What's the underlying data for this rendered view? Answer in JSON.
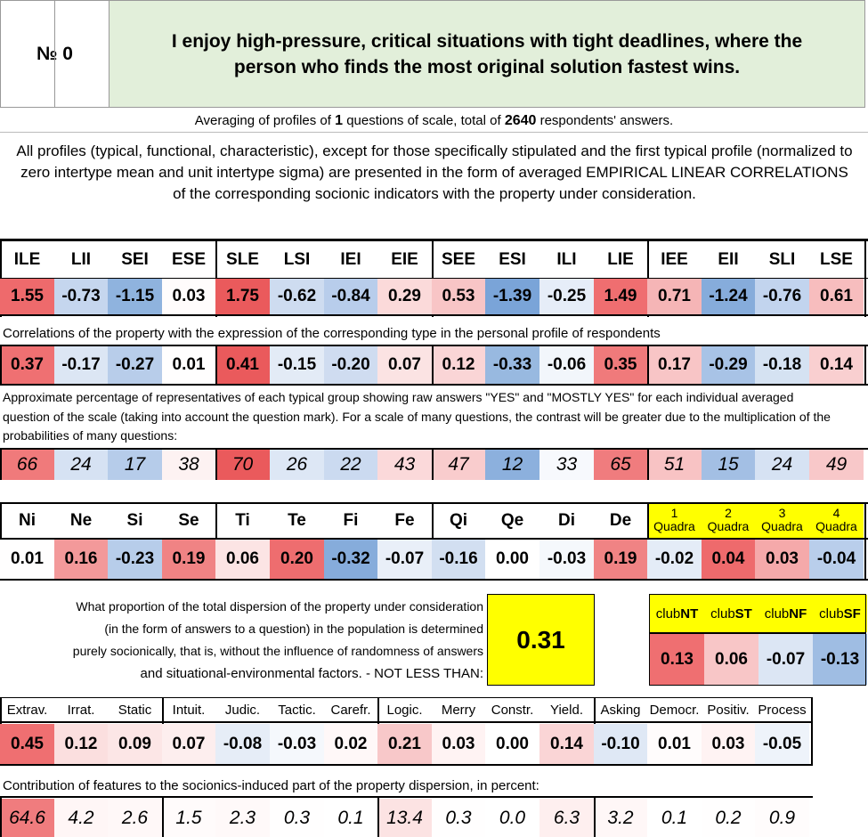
{
  "header": {
    "number_label": "№ 0",
    "question": "I enjoy high-pressure, critical situations with tight deadlines, where the person who finds the most original solution fastest wins."
  },
  "averaging": {
    "prefix": "Averaging of profiles of",
    "count": "1",
    "middle": "questions of scale, total of",
    "respondents": "2640",
    "suffix": "respondents' answers."
  },
  "intro": "All profiles (typical, functional, characteristic), except for those specifically stipulated and the first typical profile (normalized to zero intertype mean and unit intertype sigma) are presented in the form of averaged EMPIRICAL LINEAR CORRELATIONS of the corresponding socionic indicators with the property under consideration.",
  "types": {
    "labels": [
      "ILE",
      "LII",
      "SEI",
      "ESE",
      "SLE",
      "LSI",
      "IEI",
      "EIE",
      "SEE",
      "ESI",
      "ILI",
      "LIE",
      "IEE",
      "EII",
      "SLI",
      "LSE"
    ],
    "profile": [
      "1.55",
      "-0.73",
      "-1.15",
      "0.03",
      "1.75",
      "-0.62",
      "-0.84",
      "0.29",
      "0.53",
      "-1.39",
      "-0.25",
      "1.49",
      "0.71",
      "-1.24",
      "-0.76",
      "0.61"
    ],
    "profile_colors": [
      "#ee6a6c",
      "#c5d6ee",
      "#8fb3de",
      "#fffcfc",
      "#ea5a5c",
      "#cedcf0",
      "#b8cdeb",
      "#fbdada",
      "#f8c5c6",
      "#7aa4d8",
      "#e6edf8",
      "#ef6e70",
      "#f5b5b6",
      "#86acdb",
      "#c2d4ee",
      "#f7bdbe"
    ],
    "correlation_note": "Correlations of the property with the expression of the corresponding type in the personal profile of respondents",
    "correlations": [
      "0.37",
      "-0.17",
      "-0.27",
      "0.01",
      "0.41",
      "-0.15",
      "-0.20",
      "0.07",
      "0.12",
      "-0.33",
      "-0.06",
      "0.35",
      "0.17",
      "-0.29",
      "-0.18",
      "0.14"
    ],
    "correlation_colors": [
      "#ef7072",
      "#dce6f4",
      "#b8cdea",
      "#fffefe",
      "#ea5a5c",
      "#e3ebf6",
      "#cfdcf0",
      "#fbe3e3",
      "#fad5d6",
      "#98b9e0",
      "#f2f6fb",
      "#f07a7b",
      "#f8c5c6",
      "#a8c3e6",
      "#d5e2f2",
      "#f9cfd0"
    ],
    "percent_note": "Approximate percentage of representatives of each typical group showing raw answers \"YES\" and \"MOSTLY YES\" for each individual averaged question of the scale (taking into account the question mark). For a scale of many questions, the contrast will be greater due to the multiplication of the probabilities of many questions:",
    "percentages": [
      "66",
      "24",
      "17",
      "38",
      "70",
      "26",
      "22",
      "43",
      "47",
      "12",
      "33",
      "65",
      "51",
      "15",
      "24",
      "49"
    ],
    "percentage_colors": [
      "#f07a7b",
      "#d6e2f3",
      "#b6ccea",
      "#fdf2f2",
      "#ea5a5c",
      "#dde7f5",
      "#cbdaf0",
      "#fbd9da",
      "#f9cccd",
      "#8cb0dd",
      "#f7f9fd",
      "#f07c7e",
      "#f8c3c4",
      "#a3bfe4",
      "#d6e2f3",
      "#f8c8c9"
    ]
  },
  "functions": {
    "labels": [
      "Ni",
      "Ne",
      "Si",
      "Se",
      "Ti",
      "Te",
      "Fi",
      "Fe",
      "Qi",
      "Qe",
      "Di",
      "De"
    ],
    "values": [
      "0.01",
      "0.16",
      "-0.23",
      "0.19",
      "0.06",
      "0.20",
      "-0.32",
      "-0.07",
      "-0.16",
      "0.00",
      "-0.03",
      "0.19"
    ],
    "colors": [
      "#fffefe",
      "#f3999a",
      "#b7cdea",
      "#f08384",
      "#fce4e4",
      "#ee6d6f",
      "#86acdb",
      "#e9eff8",
      "#d2dff1",
      "#ffffff",
      "#f5f8fc",
      "#f08384"
    ],
    "quadras": [
      "1\nQuadra",
      "2\nQuadra",
      "3\nQuadra",
      "4\nQuadra"
    ],
    "quadra_values": [
      "-0.02",
      "0.04",
      "0.03",
      "-0.04"
    ],
    "quadra_colors": [
      "#e4ecf7",
      "#ee6a6c",
      "#f5a9aa",
      "#b9ceeb"
    ],
    "quadra_bg": "#ffff00"
  },
  "dispersion": {
    "lines": [
      "What proportion of the total dispersion of the property under consideration",
      "(in the form of answers to a question) in the population is determined",
      "purely socionically, that is, without the influence of randomness of answers",
      "and situational-environmental factors. - NOT LESS THAN:"
    ],
    "value": "0.31",
    "value_bg": "#ffff00"
  },
  "clubs": {
    "prefix": "club",
    "labels": [
      "NT",
      "ST",
      "NF",
      "SF"
    ],
    "values": [
      "0.13",
      "0.06",
      "-0.07",
      "-0.13"
    ],
    "colors": [
      "#ef6f71",
      "#f8c6c7",
      "#dce6f4",
      "#9fbde3"
    ],
    "header_bg": "#ffff00"
  },
  "traits": {
    "labels": [
      "Extrav.",
      "Irrat.",
      "Static",
      "Intuit.",
      "Judic.",
      "Tactic.",
      "Carefr.",
      "Logic.",
      "Merry",
      "Constr.",
      "Yield.",
      "Asking",
      "Democr.",
      "Positiv.",
      "Process"
    ],
    "values": [
      "0.45",
      "0.12",
      "0.09",
      "0.07",
      "-0.08",
      "-0.03",
      "0.02",
      "0.21",
      "0.03",
      "0.00",
      "0.14",
      "-0.10",
      "0.01",
      "0.03",
      "-0.05"
    ],
    "colors": [
      "#ef6f71",
      "#fbdfdf",
      "#fce6e6",
      "#fdeeee",
      "#e6edf7",
      "#f5f8fc",
      "#fff8f8",
      "#f8c8c9",
      "#fff3f3",
      "#ffffff",
      "#fad5d6",
      "#dfe8f5",
      "#fffcfc",
      "#fff3f3",
      "#eef3fa"
    ],
    "contribution_note": "Contribution of features to the socionics-induced part of the property dispersion, in percent:",
    "contributions": [
      "64.6",
      "4.2",
      "2.6",
      "1.5",
      "2.3",
      "0.3",
      "0.1",
      "13.4",
      "0.3",
      "0.0",
      "6.3",
      "3.2",
      "0.1",
      "0.2",
      "0.9"
    ],
    "contribution_colors": [
      "#f07c7e",
      "#fff6f6",
      "#fff8f8",
      "#fffbfb",
      "#fff9f9",
      "#fffefe",
      "#ffffff",
      "#fce3e3",
      "#fffefe",
      "#ffffff",
      "#feefef",
      "#fff7f7",
      "#ffffff",
      "#fffefe",
      "#fffcfc"
    ]
  },
  "colors": {
    "question_bg": "#e2efda",
    "border": "#000000"
  }
}
